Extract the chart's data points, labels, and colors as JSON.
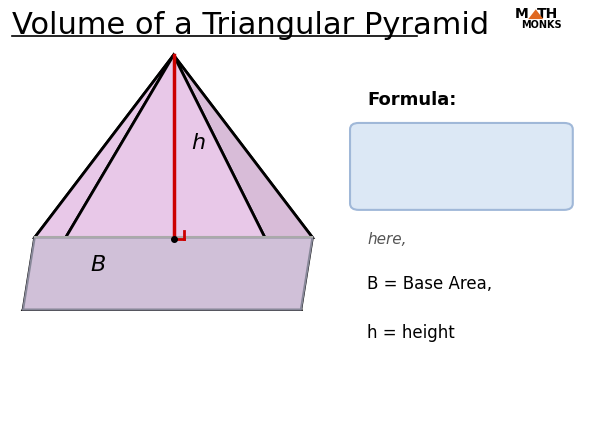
{
  "title": "Volume of a Triangular Pyramid",
  "title_fontsize": 22,
  "bg_color": "#ffffff",
  "pyramid_face_color": "#e8c8e8",
  "pyramid_base_color": "#d0c0d8",
  "pyramid_edge_color": "#000000",
  "height_line_color": "#cc0000",
  "formula_box_color": "#dce8f5",
  "formula_box_edge": "#a0b8d8",
  "formula_label": "Formula:",
  "here_text": "here,",
  "b_label": "B = Base Area,",
  "h_label": "h = height",
  "b_text": "B",
  "h_text": "h"
}
